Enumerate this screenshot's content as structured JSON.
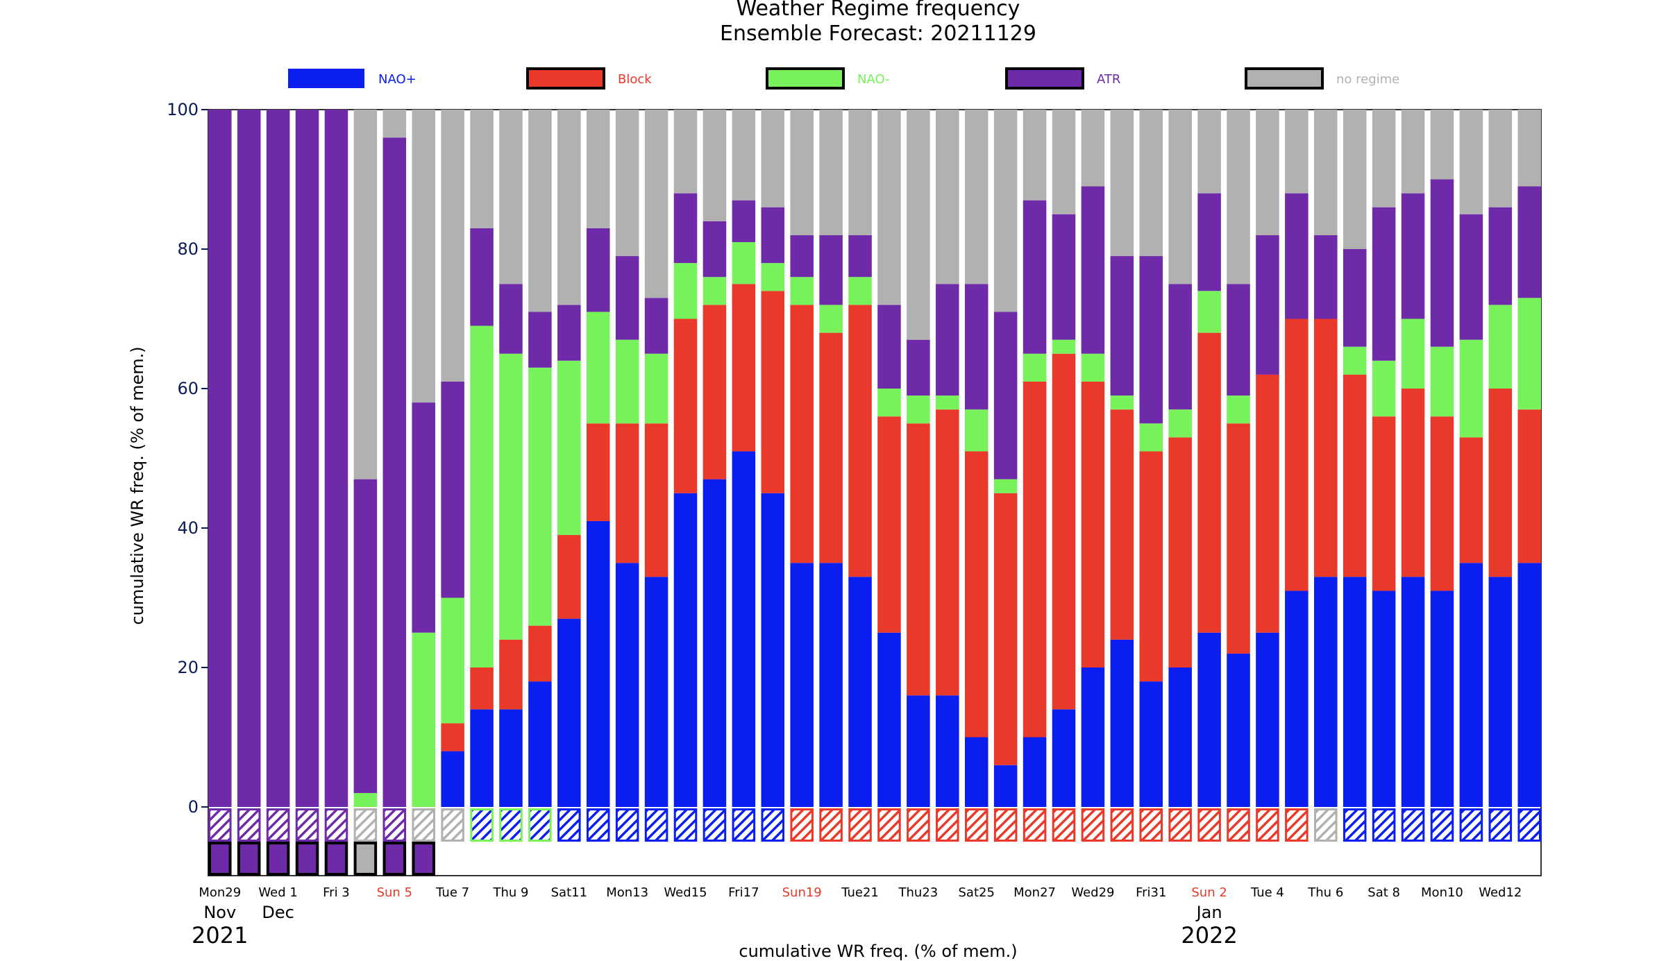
{
  "chart_data": {
    "type": "bar",
    "stacked": true,
    "title": "Weather Regime frequency",
    "subtitle": "Ensemble Forecast: 20211129",
    "xlabel": "cumulative WR freq. (% of mem.)",
    "ylabel": "cumulative WR freq. (% of mem.)",
    "ylim": [
      0,
      100
    ],
    "yticks": [
      0,
      20,
      40,
      60,
      80,
      100
    ],
    "grid": false,
    "legend_position": "top",
    "colors": {
      "NAO+": "#0a1ef0",
      "Block": "#e8392a",
      "NAO-": "#77f25a",
      "ATR": "#6e2aa8",
      "no regime": "#b1b1b1"
    },
    "series": [
      {
        "name": "NAO+",
        "values": [
          0,
          0,
          0,
          0,
          0,
          0,
          0,
          0,
          8,
          14,
          14,
          18,
          27,
          41,
          35,
          33,
          45,
          47,
          51,
          45,
          35,
          35,
          33,
          25,
          16,
          16,
          10,
          6,
          10,
          14,
          20,
          24,
          18,
          20,
          25,
          22,
          25,
          31,
          33,
          33,
          31,
          33,
          31,
          35,
          33,
          35
        ]
      },
      {
        "name": "Block",
        "values": [
          0,
          0,
          0,
          0,
          0,
          0,
          0,
          0,
          4,
          6,
          10,
          8,
          12,
          14,
          20,
          22,
          25,
          25,
          24,
          29,
          37,
          33,
          39,
          31,
          39,
          41,
          41,
          39,
          51,
          51,
          41,
          33,
          33,
          33,
          43,
          33,
          37,
          39,
          37,
          29,
          25,
          27,
          25,
          18,
          27,
          22
        ]
      },
      {
        "name": "NAO-",
        "values": [
          0,
          0,
          0,
          0,
          0,
          2,
          0,
          25,
          18,
          49,
          41,
          37,
          25,
          16,
          12,
          10,
          8,
          4,
          6,
          4,
          4,
          4,
          4,
          4,
          4,
          2,
          6,
          2,
          4,
          2,
          4,
          2,
          4,
          4,
          6,
          4,
          0,
          0,
          0,
          4,
          8,
          10,
          10,
          14,
          12,
          16
        ]
      },
      {
        "name": "ATR",
        "values": [
          100,
          100,
          100,
          100,
          100,
          45,
          96,
          33,
          31,
          14,
          10,
          8,
          8,
          12,
          12,
          8,
          10,
          8,
          6,
          8,
          6,
          10,
          6,
          12,
          8,
          16,
          18,
          24,
          22,
          18,
          24,
          20,
          24,
          18,
          14,
          16,
          20,
          18,
          12,
          14,
          22,
          18,
          24,
          18,
          14,
          16
        ]
      },
      {
        "name": "no regime",
        "values": [
          0,
          0,
          0,
          0,
          0,
          53,
          4,
          42,
          39,
          17,
          25,
          29,
          28,
          17,
          21,
          27,
          12,
          16,
          13,
          14,
          18,
          18,
          18,
          28,
          33,
          25,
          25,
          29,
          13,
          15,
          11,
          21,
          21,
          25,
          12,
          25,
          18,
          12,
          18,
          20,
          14,
          12,
          10,
          15,
          14,
          11
        ]
      }
    ],
    "daily_regime": [
      "ATR",
      "ATR",
      "ATR",
      "ATR",
      "ATR",
      "no regime",
      "ATR",
      "no regime",
      "no regime",
      "NAO-",
      "NAO-",
      "NAO-",
      "NAO+",
      "NAO+",
      "NAO+",
      "NAO+",
      "NAO+",
      "NAO+",
      "NAO+",
      "NAO+",
      "Block",
      "Block",
      "Block",
      "Block",
      "Block",
      "Block",
      "Block",
      "Block",
      "Block",
      "Block",
      "Block",
      "Block",
      "Block",
      "Block",
      "Block",
      "Block",
      "Block",
      "Block",
      "no regime",
      "NAO+",
      "NAO+",
      "NAO+",
      "NAO+",
      "NAO+",
      "NAO+",
      "NAO+"
    ],
    "lifecycle_regime": [
      "ATR",
      "ATR",
      "ATR",
      "ATR",
      "ATR",
      "no regime",
      "ATR",
      "ATR"
    ],
    "xtick_labels": [
      {
        "index": 0,
        "label": "Mon29",
        "sunday": false
      },
      {
        "index": 2,
        "label": "Wed 1",
        "sunday": false
      },
      {
        "index": 4,
        "label": "Fri 3",
        "sunday": false
      },
      {
        "index": 6,
        "label": "Sun 5",
        "sunday": true
      },
      {
        "index": 8,
        "label": "Tue 7",
        "sunday": false
      },
      {
        "index": 10,
        "label": "Thu 9",
        "sunday": false
      },
      {
        "index": 12,
        "label": "Sat11",
        "sunday": false
      },
      {
        "index": 14,
        "label": "Mon13",
        "sunday": false
      },
      {
        "index": 16,
        "label": "Wed15",
        "sunday": false
      },
      {
        "index": 18,
        "label": "Fri17",
        "sunday": false
      },
      {
        "index": 20,
        "label": "Sun19",
        "sunday": true
      },
      {
        "index": 22,
        "label": "Tue21",
        "sunday": false
      },
      {
        "index": 24,
        "label": "Thu23",
        "sunday": false
      },
      {
        "index": 26,
        "label": "Sat25",
        "sunday": false
      },
      {
        "index": 28,
        "label": "Mon27",
        "sunday": false
      },
      {
        "index": 30,
        "label": "Wed29",
        "sunday": false
      },
      {
        "index": 32,
        "label": "Fri31",
        "sunday": false
      },
      {
        "index": 34,
        "label": "Sun 2",
        "sunday": true
      },
      {
        "index": 36,
        "label": "Tue 4",
        "sunday": false
      },
      {
        "index": 38,
        "label": "Thu 6",
        "sunday": false
      },
      {
        "index": 40,
        "label": "Sat 8",
        "sunday": false
      },
      {
        "index": 42,
        "label": "Mon10",
        "sunday": false
      },
      {
        "index": 44,
        "label": "Wed12",
        "sunday": false
      }
    ],
    "month_labels": [
      {
        "index": 0,
        "label": "Nov"
      },
      {
        "index": 2,
        "label": "Dec"
      },
      {
        "index": 34,
        "label": "Jan"
      }
    ],
    "year_labels": [
      {
        "index": 0,
        "label": "2021"
      },
      {
        "index": 34,
        "label": "2022"
      }
    ]
  }
}
